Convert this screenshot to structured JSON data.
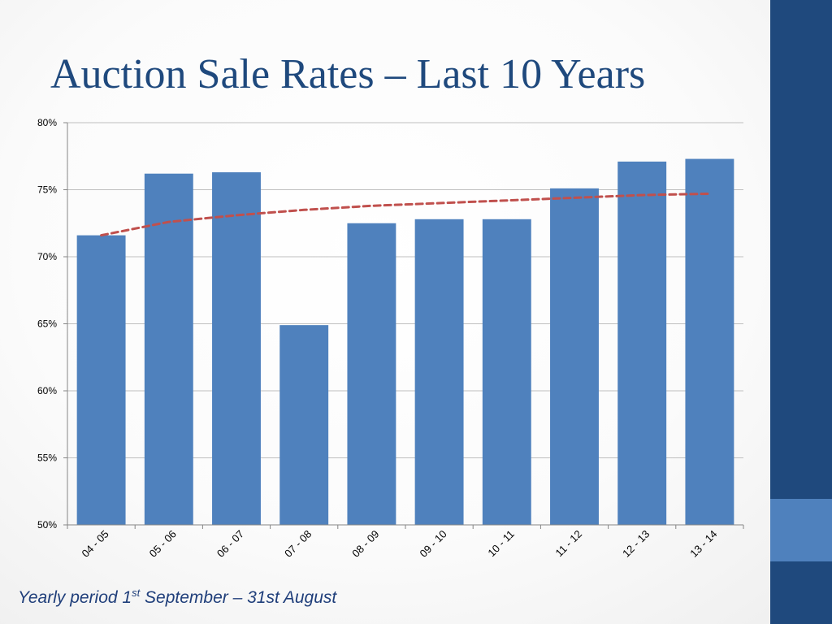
{
  "slide": {
    "title": "Auction Sale Rates – Last 10 Years",
    "footnote": {
      "pre": "Yearly period 1",
      "sup": "st",
      "post": " September – 31st August"
    }
  },
  "colors": {
    "band": "#1f497d",
    "band_accent": "#4f81bd",
    "bar": "#4f81bd",
    "trendline": "#c0504d",
    "grid": "#bfbfbf",
    "title": "#1f497d"
  },
  "chart_data": {
    "type": "bar",
    "title": "",
    "xlabel": "",
    "ylabel": "",
    "categories": [
      "04 - 05",
      "05 - 06",
      "06 - 07",
      "07 - 08",
      "08 - 09",
      "09 - 10",
      "10 - 11",
      "11 - 12",
      "12 - 13",
      "13 - 14"
    ],
    "series": [
      {
        "values": [
          71.6,
          76.2,
          76.3,
          64.9,
          72.5,
          72.8,
          72.8,
          75.1,
          77.1,
          77.3
        ]
      }
    ],
    "trendline": {
      "type": "logarithmic",
      "style": "dashed",
      "values": [
        71.6,
        72.6,
        73.1,
        73.5,
        73.8,
        74.0,
        74.2,
        74.4,
        74.6,
        74.7
      ]
    },
    "ylim": [
      50,
      80
    ],
    "yticks": [
      "50%",
      "55%",
      "60%",
      "65%",
      "70%",
      "75%",
      "80%"
    ],
    "grid": true,
    "legend": "none"
  }
}
